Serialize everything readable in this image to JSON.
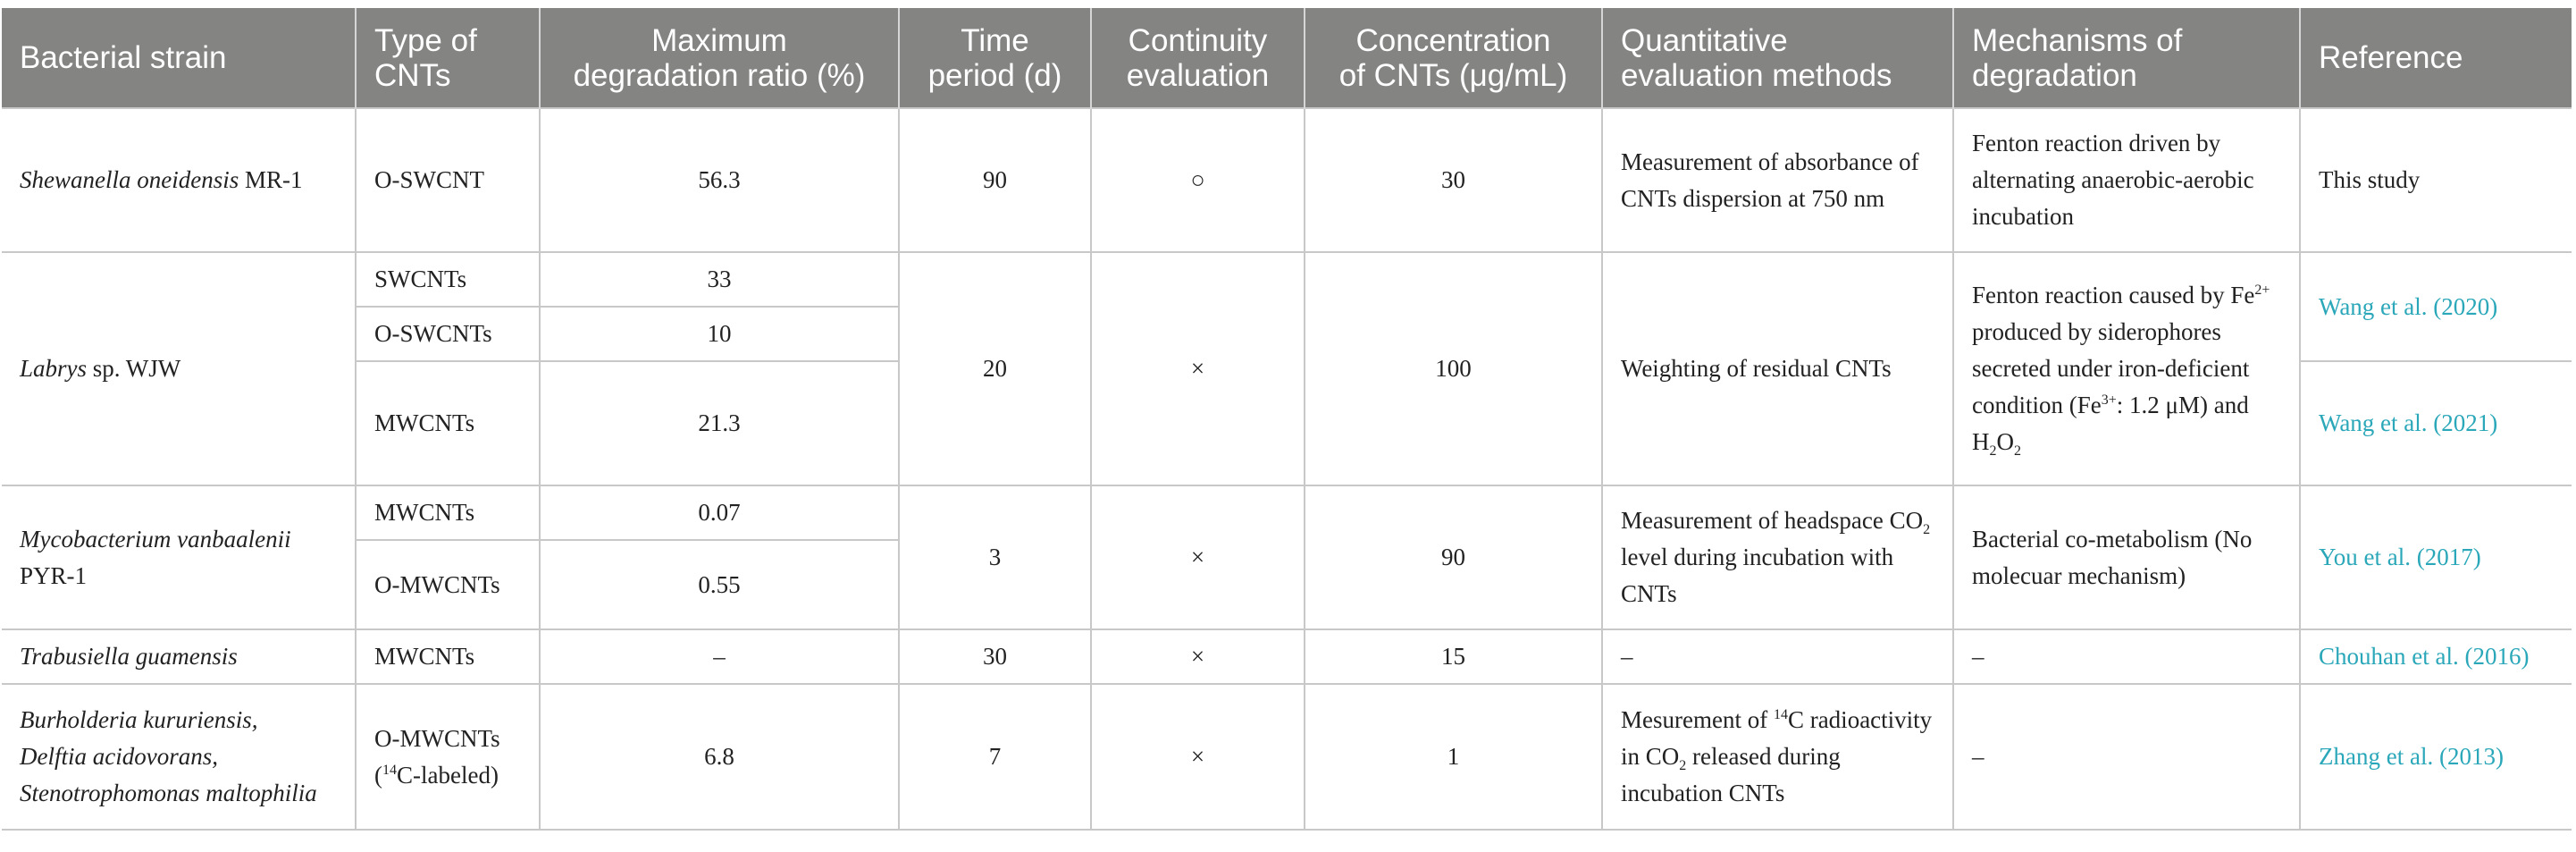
{
  "headers": {
    "strain": "Bacterial strain",
    "type_a": "Type of",
    "type_b": "CNTs",
    "ratio_a": "Maximum",
    "ratio_b": "degradation ratio (%)",
    "time_a": "Time",
    "time_b": "period (d)",
    "cont_a": "Continuity",
    "cont_b": "evaluation",
    "conc_a": "Concentration",
    "conc_b": "of CNTs (μg/mL)",
    "quant_a": "Quantitative",
    "quant_b": "evaluation methods",
    "mech_a": "Mechanisms of",
    "mech_b": "degradation",
    "ref": "Reference"
  },
  "rows": {
    "shewanella": {
      "strain_italic": "Shewanella oneidensis",
      "strain_rest": " MR-1",
      "type": "O-SWCNT",
      "ratio": "56.3",
      "time": "90",
      "continuity": "○",
      "conc": "30",
      "quant": "Measurement of absorbance of CNTs dispersion at 750 nm",
      "mech": "Fenton reaction driven by alternating anaerobic-aerobic incubation",
      "ref": "This study"
    },
    "labrys": {
      "strain_italic": "Labrys",
      "strain_rest": " sp. WJW",
      "types": [
        "SWCNTs",
        "O-SWCNTs",
        "MWCNTs"
      ],
      "ratios": [
        "33",
        "10",
        "21.3"
      ],
      "time": "20",
      "continuity": "×",
      "conc": "100",
      "quant": "Weighting of residual CNTs",
      "mech_1": "Fenton reaction caused by Fe",
      "mech_sup1": "2+",
      "mech_2": " produced by siderophores secreted under iron-deficient condition (Fe",
      "mech_sup2": "3+",
      "mech_3": ": 1.2 μM) and H",
      "mech_sub1": "2",
      "mech_4": "O",
      "mech_sub2": "2",
      "refs": [
        "Wang et al. (2020)",
        "Wang et al. (2021)"
      ]
    },
    "mycobacterium": {
      "strain_italic": "Mycobacterium vanbaalenii",
      "strain_rest": "PYR-1",
      "types": [
        "MWCNTs",
        "O-MWCNTs"
      ],
      "ratios": [
        "0.07",
        "0.55"
      ],
      "time": "3",
      "continuity": "×",
      "conc": "90",
      "quant_1": "Measurement of headspace CO",
      "quant_sub": "2",
      "quant_2": " level during incubation with CNTs",
      "mech": "Bacterial co-metabolism (No molecuar mechanism)",
      "ref": "You et al. (2017)"
    },
    "trabusiella": {
      "strain_italic": "Trabusiella guamensis",
      "type": "MWCNTs",
      "ratio": "–",
      "time": "30",
      "continuity": "×",
      "conc": "15",
      "quant": "–",
      "mech": "–",
      "ref": "Chouhan et al. (2016)"
    },
    "burholderia": {
      "strain_line1": "Burholderia kururiensis,",
      "strain_line2": "Delftia acidovorans,",
      "strain_line3": "Stenotrophomonas maltophilia",
      "type_1": "O-MWCNTs",
      "type_2a": "(",
      "type_sup": "14",
      "type_2b": "C-labeled)",
      "ratio": "6.8",
      "time": "7",
      "continuity": "×",
      "conc": "1",
      "quant_1": "Mesurement of ",
      "quant_sup": "14",
      "quant_2": "C radioactivity in CO",
      "quant_sub": "2",
      "quant_3": " released during incubation CNTs",
      "mech": "–",
      "ref": "Zhang et al. (2013)"
    }
  }
}
